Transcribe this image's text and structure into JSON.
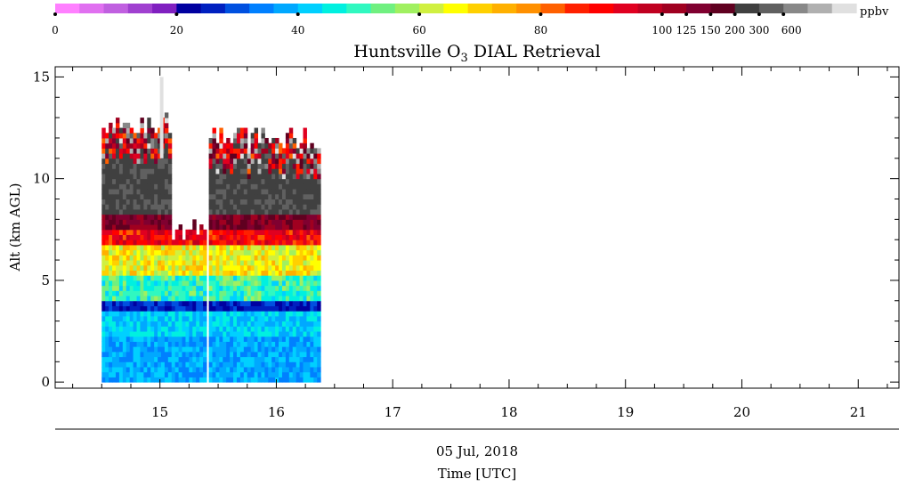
{
  "chart_data": {
    "type": "heatmap",
    "title": "Huntsville O3 DIAL Retrieval",
    "title_main": "Huntsville O",
    "title_sub": "3",
    "title_rest": " DIAL Retrieval",
    "ylabel": "Alt (km AGL)",
    "xlabel": "Time [UTC]",
    "date_label": "05 Jul, 2018",
    "xlim": [
      14.1,
      21.35
    ],
    "ylim": [
      -0.3,
      15.5
    ],
    "x_ticks": [
      "15",
      "16",
      "17",
      "18",
      "19",
      "20",
      "21"
    ],
    "y_ticks": [
      "0",
      "5",
      "10",
      "15"
    ],
    "colorbar": {
      "unit": "ppbv",
      "tick_labels": [
        "0",
        "20",
        "40",
        "60",
        "80",
        "100",
        "125",
        "150",
        "200",
        "300",
        "600"
      ],
      "colors": [
        "#ff80ff",
        "#e070f0",
        "#c060e0",
        "#a040d0",
        "#8020c0",
        "#0000a0",
        "#0020c0",
        "#0050e0",
        "#0080ff",
        "#00a8ff",
        "#00d0ff",
        "#00f0e0",
        "#30f8c0",
        "#70f080",
        "#a0f060",
        "#d0f040",
        "#ffff00",
        "#ffd000",
        "#ffb000",
        "#ff9000",
        "#ff6000",
        "#ff2000",
        "#ff0000",
        "#e00020",
        "#c00020",
        "#a00020",
        "#800030",
        "#600020",
        "#404040",
        "#606060",
        "#888888",
        "#b0b0b0",
        "#e0e0e0"
      ]
    },
    "profiles": [
      {
        "t_start": 14.5,
        "t_end": 15.1,
        "top": 13.2,
        "cloud_top": 15.0
      },
      {
        "t_start": 15.1,
        "t_end": 15.4,
        "top": 7.8
      },
      {
        "t_start": 15.42,
        "t_end": 16.38,
        "top": 12.5
      },
      {
        "t_start": 16.25,
        "t_end": 16.38,
        "top": 11.0
      }
    ]
  }
}
